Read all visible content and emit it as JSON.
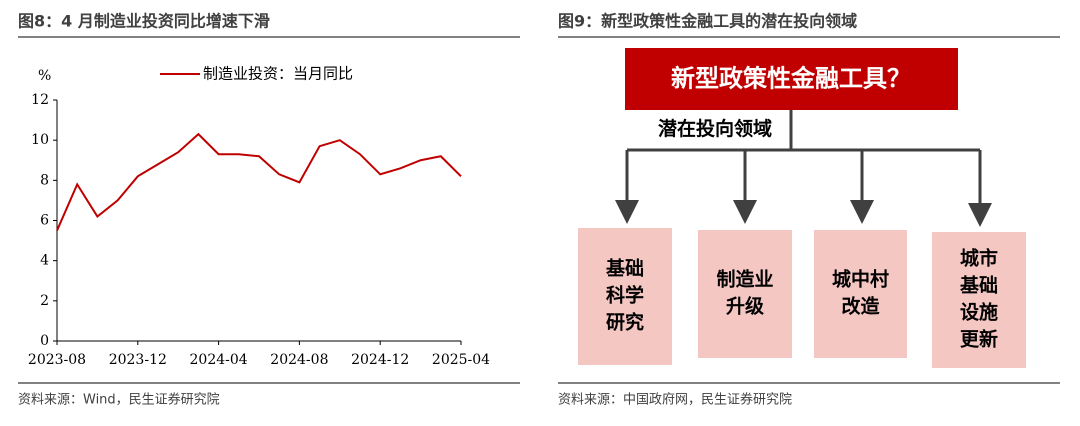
{
  "chart_data": {
    "type": "line",
    "title": "图8：4 月制造业投资同比增速下滑",
    "ylabel": "%",
    "categories": [
      "2023-08",
      null,
      null,
      null,
      "2023-12",
      null,
      null,
      null,
      "2024-04",
      null,
      null,
      null,
      "2024-08",
      null,
      null,
      null,
      "2024-12",
      null,
      null,
      null,
      "2025-04"
    ],
    "series": [
      {
        "name": "制造业投资：当月同比",
        "color": "#c00000",
        "values": [
          5.5,
          7.8,
          6.2,
          7.0,
          8.2,
          8.8,
          9.4,
          10.3,
          9.3,
          9.3,
          9.2,
          8.3,
          7.9,
          9.7,
          10.0,
          9.3,
          8.3,
          8.6,
          9.0,
          9.2,
          8.2
        ]
      }
    ],
    "ylim": [
      0,
      12
    ],
    "yticks": [
      0,
      2,
      4,
      6,
      8,
      10,
      12
    ],
    "source": "资料来源：Wind，民生证券研究院"
  },
  "diagram": {
    "title": "图9：新型政策性金融工具的潜在投向领域",
    "root": "新型政策性金融工具？",
    "branch_label": "潜在投向领域",
    "nodes": [
      {
        "lines": [
          "基础",
          "科学",
          "研究"
        ]
      },
      {
        "lines": [
          "制造业",
          "升级"
        ]
      },
      {
        "lines": [
          "城中村",
          "改造"
        ]
      },
      {
        "lines": [
          "城市",
          "基础",
          "设施",
          "更新"
        ]
      }
    ],
    "source": "资料来源：中国政府网，民生证券研究院"
  }
}
